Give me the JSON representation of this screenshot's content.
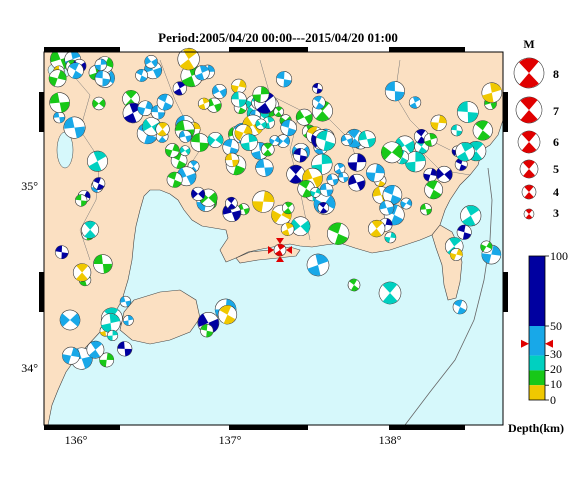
{
  "title": "Period:2005/04/20 00:00---2015/04/20 01:00",
  "axes": {
    "lon_ticks": [
      "136°",
      "137°",
      "138°"
    ],
    "lat_ticks": [
      "35°",
      "34°"
    ]
  },
  "magnitude_legend": {
    "header": "M",
    "labels": [
      "8",
      "7",
      "6",
      "5",
      "4",
      "3"
    ]
  },
  "depth_scale": {
    "labels": [
      "100",
      "50",
      "30",
      "20",
      "10",
      "0"
    ],
    "unit_label": "Depth(km)",
    "values_km": [
      100,
      50,
      30,
      20,
      10,
      0
    ],
    "bands": [
      {
        "from_km": 50,
        "to_km": 100,
        "color": "#0000a0"
      },
      {
        "from_km": 30,
        "to_km": 50,
        "color": "#18a8e8"
      },
      {
        "from_km": 20,
        "to_km": 30,
        "color": "#00d0c0"
      },
      {
        "from_km": 10,
        "to_km": 20,
        "color": "#18c818"
      },
      {
        "from_km": 0,
        "to_km": 10,
        "color": "#f0c800"
      }
    ],
    "marker_depth_km": 38
  },
  "colors": {
    "land": "#fbe0c2",
    "sea": "#d6f8fb",
    "target_event": "#e00000",
    "shallow": "#f0c800",
    "green": "#18c818",
    "teal": "#00d0c0",
    "blue": "#18a8e8",
    "deep": "#0000a0"
  },
  "map_extent": {
    "lon": [
      135.8,
      138.7
    ],
    "lat": [
      33.7,
      35.25
    ]
  },
  "target_event": {
    "lon": 137.32,
    "lat": 34.7,
    "depth_km": 38
  }
}
